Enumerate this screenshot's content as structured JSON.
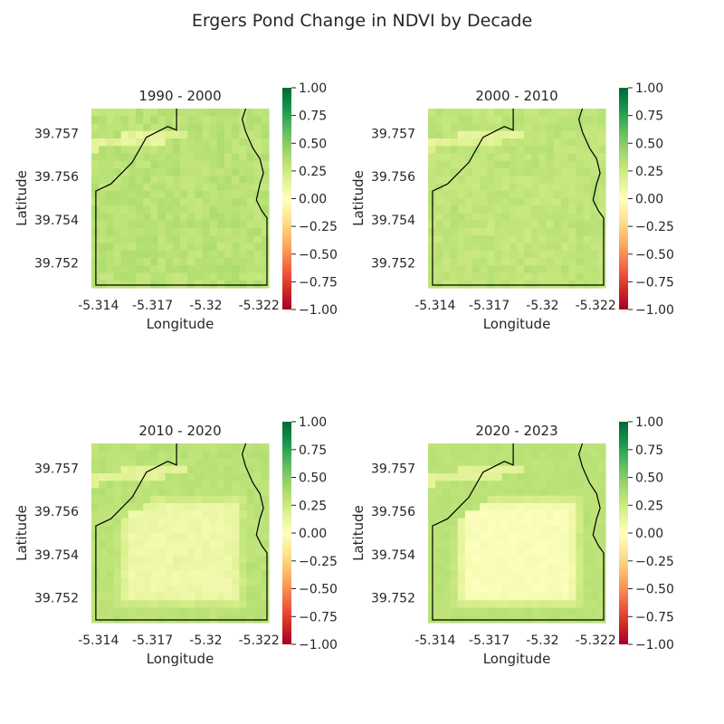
{
  "figure": {
    "title": "Ergers Pond Change in NDVI by Decade"
  },
  "chart_data": [
    {
      "type": "heatmap",
      "title": "1990 - 2000",
      "xlabel": "Longitude",
      "ylabel": "Latitude",
      "xticks": [
        "-5.314",
        "-5.317",
        "-5.32",
        "-5.322"
      ],
      "yticks": [
        "39.757",
        "39.756",
        "39.754",
        "39.752"
      ],
      "colorbar": {
        "min": -1.0,
        "max": 1.0,
        "ticks": [
          "1.00",
          "0.75",
          "0.50",
          "0.25",
          "0.00",
          "−0.25",
          "−0.50",
          "−0.75",
          "−1.00"
        ],
        "colormap": "RdYlGn"
      },
      "field": {
        "base": 0.32,
        "interior": 0.32,
        "edge": 0.34,
        "strip": 0.15,
        "variation": 0.05
      }
    },
    {
      "type": "heatmap",
      "title": "2000 - 2010",
      "xlabel": "Longitude",
      "ylabel": "Latitude",
      "xticks": [
        "-5.314",
        "-5.317",
        "-5.32",
        "-5.322"
      ],
      "yticks": [
        "39.757",
        "39.756",
        "39.754",
        "39.752"
      ],
      "colorbar": {
        "min": -1.0,
        "max": 1.0,
        "ticks": [
          "1.00",
          "0.75",
          "0.50",
          "0.25",
          "0.00",
          "−0.25",
          "−0.50",
          "−0.75",
          "−1.00"
        ],
        "colormap": "RdYlGn"
      },
      "field": {
        "base": 0.3,
        "interior": 0.29,
        "edge": 0.33,
        "strip": 0.15,
        "variation": 0.04
      }
    },
    {
      "type": "heatmap",
      "title": "2010 - 2020",
      "xlabel": "Longitude",
      "ylabel": "Latitude",
      "xticks": [
        "-5.314",
        "-5.317",
        "-5.32",
        "-5.322"
      ],
      "yticks": [
        "39.757",
        "39.756",
        "39.754",
        "39.752"
      ],
      "colorbar": {
        "min": -1.0,
        "max": 1.0,
        "ticks": [
          "1.00",
          "0.75",
          "0.50",
          "0.25",
          "0.00",
          "−0.25",
          "−0.50",
          "−0.75",
          "−1.00"
        ],
        "colormap": "RdYlGn"
      },
      "field": {
        "base": 0.32,
        "interior": 0.09,
        "edge": 0.34,
        "strip": 0.15,
        "variation": 0.03
      }
    },
    {
      "type": "heatmap",
      "title": "2020 - 2023",
      "xlabel": "Longitude",
      "ylabel": "Latitude",
      "xticks": [
        "-5.314",
        "-5.317",
        "-5.32",
        "-5.322"
      ],
      "yticks": [
        "39.757",
        "39.756",
        "39.754",
        "39.752"
      ],
      "colorbar": {
        "min": -1.0,
        "max": 1.0,
        "ticks": [
          "1.00",
          "0.75",
          "0.50",
          "0.25",
          "0.00",
          "−0.25",
          "−0.50",
          "−0.75",
          "−1.00"
        ],
        "colormap": "RdYlGn"
      },
      "field": {
        "base": 0.32,
        "interior": 0.03,
        "edge": 0.34,
        "strip": 0.15,
        "variation": 0.02
      }
    }
  ]
}
